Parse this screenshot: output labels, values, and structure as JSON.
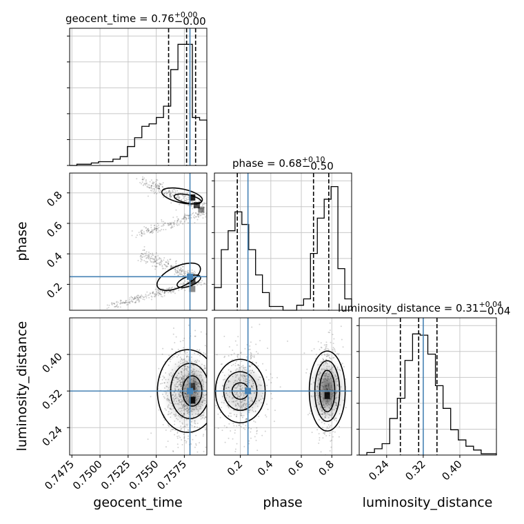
{
  "chart_data": {
    "type": "corner",
    "parameters": [
      "geocent_time",
      "phase",
      "luminosity_distance"
    ],
    "truths": {
      "geocent_time": 0.758,
      "phase": 0.25,
      "luminosity_distance": 0.32
    },
    "marginal_titles": [
      {
        "param": "geocent_time",
        "base": "geocent_time = 0.76",
        "sup": "+0.00",
        "sub": "−0.00"
      },
      {
        "param": "phase",
        "base": "phase = 0.68",
        "sup": "+0.10",
        "sub": "−0.50"
      },
      {
        "param": "luminosity_distance",
        "base": "luminosity_distance = 0.31",
        "sup": "+0.04",
        "sub": "−0.04"
      }
    ],
    "axis_labels": {
      "x": [
        "geocent_time",
        "phase",
        "luminosity_distance"
      ],
      "y": [
        "phase",
        "luminosity_distance"
      ]
    },
    "ranges": {
      "geocent_time": [
        0.7473,
        0.7595
      ],
      "phase": [
        0.03,
        0.93
      ],
      "luminosity_distance": [
        0.18,
        0.48
      ]
    },
    "ticks": {
      "geocent_time": [
        "0.7475",
        "0.7500",
        "0.7525",
        "0.7550",
        "0.7575"
      ],
      "phase": [
        "0.2",
        "0.4",
        "0.6",
        "0.8"
      ],
      "luminosity_distance": [
        "0.24",
        "0.32",
        "0.40"
      ]
    },
    "histograms": {
      "geocent_time": [
        0.0,
        0.01,
        0.01,
        0.02,
        0.03,
        0.03,
        0.05,
        0.07,
        0.15,
        0.22,
        0.31,
        0.33,
        0.38,
        0.47,
        0.76,
        0.96,
        0.96,
        0.38,
        0.36
      ],
      "phase": [
        0.18,
        0.48,
        0.63,
        0.78,
        0.68,
        0.48,
        0.28,
        0.14,
        0.03,
        0.03,
        0.0,
        0.0,
        0.04,
        0.09,
        0.45,
        0.73,
        0.88,
        0.98,
        0.33,
        0.09
      ],
      "luminosity_distance": [
        0.0,
        0.02,
        0.05,
        0.09,
        0.29,
        0.45,
        0.75,
        0.96,
        0.95,
        0.8,
        0.55,
        0.37,
        0.2,
        0.12,
        0.07,
        0.04,
        0.01,
        0.01
      ]
    },
    "quantile_lines": {
      "geocent_time": [
        0.7561,
        0.7577,
        0.7585
      ],
      "phase": [
        0.18,
        0.68,
        0.78
      ],
      "luminosity_distance": [
        0.27,
        0.31,
        0.35
      ]
    },
    "colors": {
      "truth": "#4682b4",
      "line": "#000000",
      "grid": "#c8c8c8"
    },
    "grid": true
  }
}
